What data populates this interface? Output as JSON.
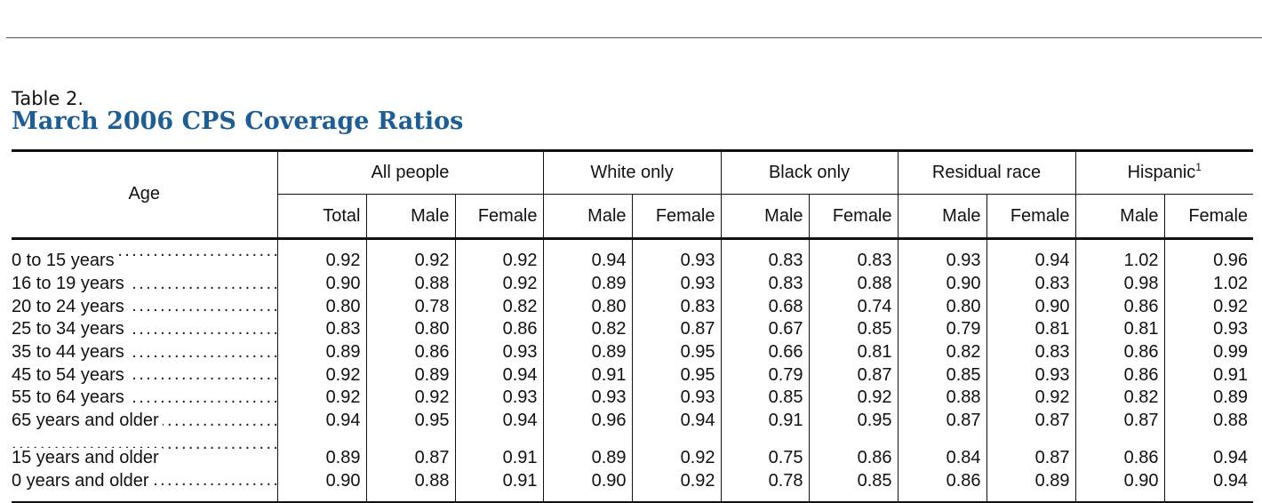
{
  "caption": {
    "label": "Table 2.",
    "title": "March 2006 CPS Coverage Ratios"
  },
  "table": {
    "stub_header": "Age",
    "groups": [
      {
        "label": "All people",
        "sub": [
          "Total",
          "Male",
          "Female"
        ]
      },
      {
        "label": "White only",
        "sub": [
          "Male",
          "Female"
        ]
      },
      {
        "label": "Black only",
        "sub": [
          "Male",
          "Female"
        ]
      },
      {
        "label": "Residual race",
        "sub": [
          "Male",
          "Female"
        ]
      },
      {
        "label": "Hispanic",
        "footnote": "1",
        "sub": [
          "Male",
          "Female"
        ]
      }
    ],
    "rows": [
      {
        "label": "0 to 15 years",
        "values": [
          "0.92",
          "0.92",
          "0.92",
          "0.94",
          "0.93",
          "0.83",
          "0.83",
          "0.93",
          "0.94",
          "1.02",
          "0.96"
        ]
      },
      {
        "label": "16 to 19 years",
        "values": [
          "0.90",
          "0.88",
          "0.92",
          "0.89",
          "0.93",
          "0.83",
          "0.88",
          "0.90",
          "0.83",
          "0.98",
          "1.02"
        ]
      },
      {
        "label": "20 to 24 years",
        "values": [
          "0.80",
          "0.78",
          "0.82",
          "0.80",
          "0.83",
          "0.68",
          "0.74",
          "0.80",
          "0.90",
          "0.86",
          "0.92"
        ]
      },
      {
        "label": "25 to 34 years",
        "values": [
          "0.83",
          "0.80",
          "0.86",
          "0.82",
          "0.87",
          "0.67",
          "0.85",
          "0.79",
          "0.81",
          "0.81",
          "0.93"
        ]
      },
      {
        "label": "35 to 44 years",
        "values": [
          "0.89",
          "0.86",
          "0.93",
          "0.89",
          "0.95",
          "0.66",
          "0.81",
          "0.82",
          "0.83",
          "0.86",
          "0.99"
        ]
      },
      {
        "label": "45 to 54 years",
        "values": [
          "0.92",
          "0.89",
          "0.94",
          "0.91",
          "0.95",
          "0.79",
          "0.87",
          "0.85",
          "0.93",
          "0.86",
          "0.91"
        ]
      },
      {
        "label": "55 to 64 years",
        "values": [
          "0.92",
          "0.92",
          "0.93",
          "0.93",
          "0.93",
          "0.85",
          "0.92",
          "0.88",
          "0.92",
          "0.82",
          "0.89"
        ]
      },
      {
        "label": "65 years and older",
        "values": [
          "0.94",
          "0.95",
          "0.94",
          "0.96",
          "0.94",
          "0.91",
          "0.95",
          "0.87",
          "0.87",
          "0.87",
          "0.88"
        ]
      },
      {
        "label": "15 years and older",
        "values": [
          "0.89",
          "0.87",
          "0.91",
          "0.89",
          "0.92",
          "0.75",
          "0.86",
          "0.84",
          "0.87",
          "0.86",
          "0.94"
        ]
      },
      {
        "label": "0 years and older",
        "values": [
          "0.90",
          "0.88",
          "0.91",
          "0.90",
          "0.92",
          "0.78",
          "0.85",
          "0.86",
          "0.89",
          "0.90",
          "0.94"
        ]
      }
    ]
  }
}
